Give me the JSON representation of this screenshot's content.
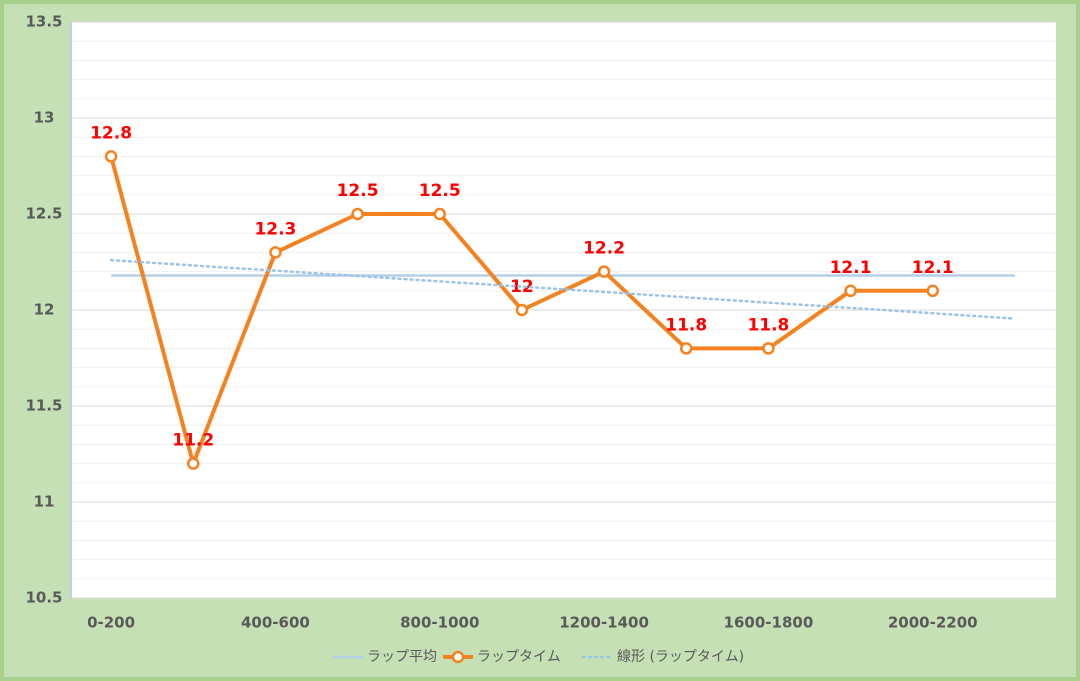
{
  "chart_data": {
    "type": "line",
    "categories": [
      "0-200",
      null,
      "400-600",
      null,
      "800-1000",
      null,
      "1200-1400",
      null,
      "1600-1800",
      null,
      "2000-2200",
      null
    ],
    "series": [
      {
        "name": "ラップ平均",
        "color": "#b4cfe6",
        "style": "solid",
        "values": [
          12.18,
          12.18,
          12.18,
          12.18,
          12.18,
          12.18,
          12.18,
          12.18,
          12.18,
          12.18,
          12.18,
          12.18
        ]
      },
      {
        "name": "ラップタイム",
        "color": "#f58220",
        "style": "marker",
        "values": [
          12.8,
          11.2,
          12.3,
          12.5,
          12.5,
          12,
          12.2,
          11.8,
          11.8,
          12.1,
          12.1,
          null
        ],
        "data_labels": true
      },
      {
        "name": "線形 (ラップタイム)",
        "color": "#9dc3e6",
        "style": "dotted",
        "values": [
          12.26,
          12.232,
          12.205,
          12.177,
          12.149,
          12.122,
          12.094,
          12.066,
          12.038,
          12.011,
          11.983,
          11.955
        ]
      }
    ],
    "ylim": [
      10.5,
      13.5
    ],
    "yticks": [
      10.5,
      11,
      11.5,
      12,
      12.5,
      13,
      13.5
    ],
    "grid": true,
    "legend": "bottom"
  }
}
